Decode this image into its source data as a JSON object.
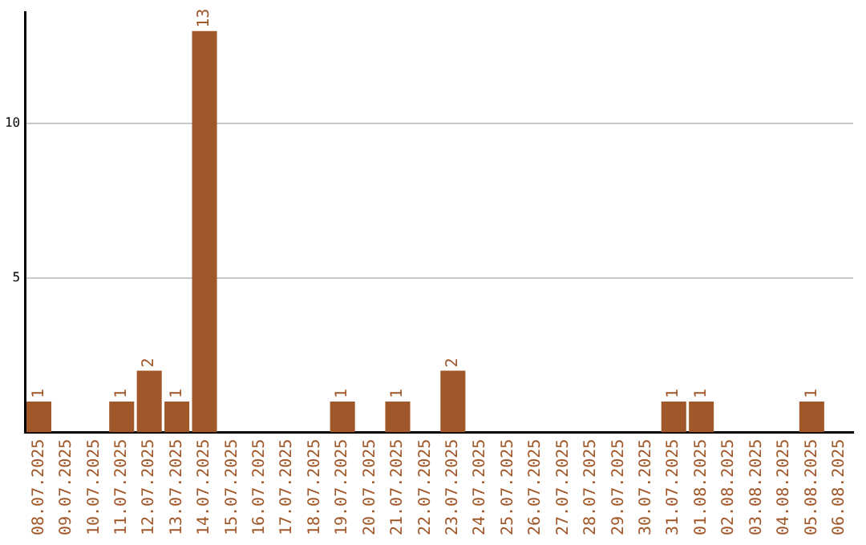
{
  "chart_data": {
    "type": "bar",
    "categories": [
      "08.07.2025",
      "09.07.2025",
      "10.07.2025",
      "11.07.2025",
      "12.07.2025",
      "13.07.2025",
      "14.07.2025",
      "15.07.2025",
      "16.07.2025",
      "17.07.2025",
      "18.07.2025",
      "19.07.2025",
      "20.07.2025",
      "21.07.2025",
      "22.07.2025",
      "23.07.2025",
      "24.07.2025",
      "25.07.2025",
      "26.07.2025",
      "27.07.2025",
      "28.07.2025",
      "29.07.2025",
      "30.07.2025",
      "31.07.2025",
      "01.08.2025",
      "02.08.2025",
      "03.08.2025",
      "04.08.2025",
      "05.08.2025",
      "06.08.2025"
    ],
    "values": [
      1,
      0,
      0,
      1,
      2,
      1,
      13,
      0,
      0,
      0,
      0,
      1,
      0,
      1,
      0,
      2,
      0,
      0,
      0,
      0,
      0,
      0,
      0,
      1,
      1,
      0,
      0,
      0,
      1,
      0
    ],
    "value_labels": [
      "1",
      null,
      null,
      "1",
      "2",
      "1",
      "13",
      null,
      null,
      null,
      null,
      "1",
      null,
      "1",
      null,
      "2",
      null,
      null,
      null,
      null,
      null,
      null,
      null,
      "1",
      "1",
      null,
      null,
      null,
      "1",
      null
    ],
    "color": "#a0582a",
    "ylim": [
      0,
      13.6
    ],
    "yticks": [
      5,
      10
    ],
    "grid": "y",
    "legend": false
  }
}
